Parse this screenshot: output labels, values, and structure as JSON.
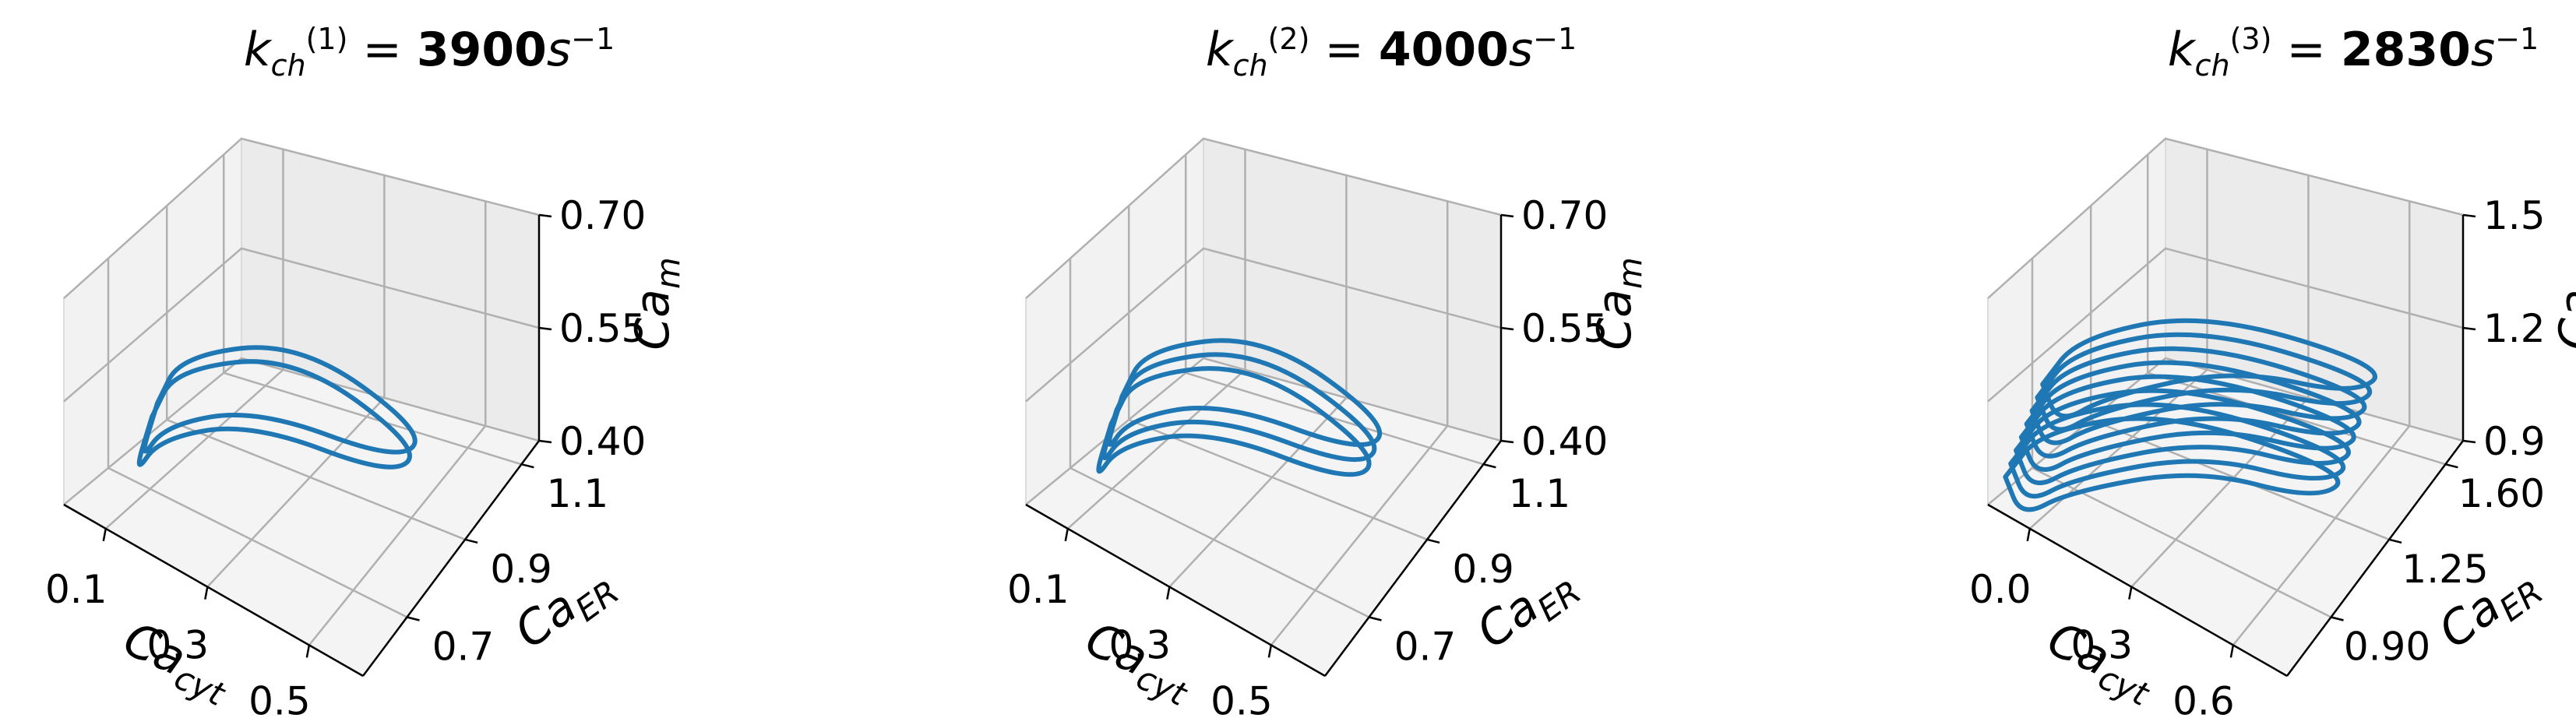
{
  "chart_data": [
    {
      "type": "line3d",
      "title": {
        "symbol": "k",
        "sub": "ch",
        "sup": "(1)",
        "eq": " = ",
        "value": "3900",
        "unit": "s",
        "unit_exp": "−1"
      },
      "xlabel": "Ca_cyt",
      "ylabel": "Ca_ER",
      "zlabel": "Ca_m",
      "xticks": [
        "0.1",
        "0.3",
        "0.5"
      ],
      "yticks": [
        "0.7",
        "0.9",
        "1.1"
      ],
      "zticks": [
        "0.40",
        "0.55",
        "0.70"
      ],
      "xlim": [
        0.0,
        0.6
      ],
      "ylim": [
        0.6,
        1.25
      ],
      "zlim": [
        0.4,
        0.76
      ],
      "series_color": "#1f77b4",
      "series": [
        {
          "loops": 2,
          "x": [
            0.1,
            0.12,
            0.25,
            0.45,
            0.42,
            0.22,
            0.1,
            0.08,
            0.1
          ],
          "y": [
            0.75,
            0.8,
            1.0,
            1.1,
            1.05,
            0.9,
            0.78,
            0.72,
            0.75
          ],
          "z": [
            0.55,
            0.62,
            0.6,
            0.45,
            0.42,
            0.52,
            0.5,
            0.45,
            0.55
          ]
        }
      ]
    },
    {
      "type": "line3d",
      "title": {
        "symbol": "k",
        "sub": "ch",
        "sup": "(2)",
        "eq": " = ",
        "value": "4000",
        "unit": "s",
        "unit_exp": "−1"
      },
      "xlabel": "Ca_cyt",
      "ylabel": "Ca_ER",
      "zlabel": "Ca_m",
      "xticks": [
        "0.1",
        "0.3",
        "0.5"
      ],
      "yticks": [
        "0.7",
        "0.9",
        "1.1"
      ],
      "zticks": [
        "0.40",
        "0.55",
        "0.70"
      ],
      "xlim": [
        0.0,
        0.6
      ],
      "ylim": [
        0.6,
        1.25
      ],
      "zlim": [
        0.4,
        0.76
      ],
      "series_color": "#1f77b4",
      "series": [
        {
          "loops": 3,
          "x": [
            0.1,
            0.12,
            0.25,
            0.45,
            0.42,
            0.22,
            0.1,
            0.08,
            0.1
          ],
          "y": [
            0.75,
            0.8,
            1.0,
            1.1,
            1.05,
            0.9,
            0.78,
            0.72,
            0.75
          ],
          "z": [
            0.55,
            0.62,
            0.6,
            0.45,
            0.42,
            0.52,
            0.5,
            0.45,
            0.55
          ]
        }
      ]
    },
    {
      "type": "line3d",
      "title": {
        "symbol": "k",
        "sub": "ch",
        "sup": "(3)",
        "eq": " = ",
        "value": "2830",
        "unit": "s",
        "unit_exp": "−1"
      },
      "xlabel": "Ca_cyt",
      "ylabel": "Ca_ER",
      "zlabel": "Ca_m",
      "xticks": [
        "0.0",
        "0.3",
        "0.6"
      ],
      "yticks": [
        "0.90",
        "1.25",
        "1.60"
      ],
      "zticks": [
        "0.9",
        "1.2",
        "1.5"
      ],
      "xlim": [
        -0.05,
        0.7
      ],
      "ylim": [
        0.8,
        1.9
      ],
      "zlim": [
        0.9,
        1.62
      ],
      "series_color": "#1f77b4",
      "series": [
        {
          "loops": 8,
          "x": [
            0.0,
            0.05,
            0.25,
            0.55,
            0.5,
            0.3,
            0.1,
            0.02,
            0.0
          ],
          "y": [
            0.9,
            1.0,
            1.3,
            1.7,
            1.6,
            1.35,
            1.05,
            0.95,
            0.9
          ],
          "z": [
            1.15,
            1.3,
            1.35,
            1.05,
            1.0,
            1.15,
            1.1,
            1.0,
            1.15
          ]
        }
      ]
    }
  ]
}
